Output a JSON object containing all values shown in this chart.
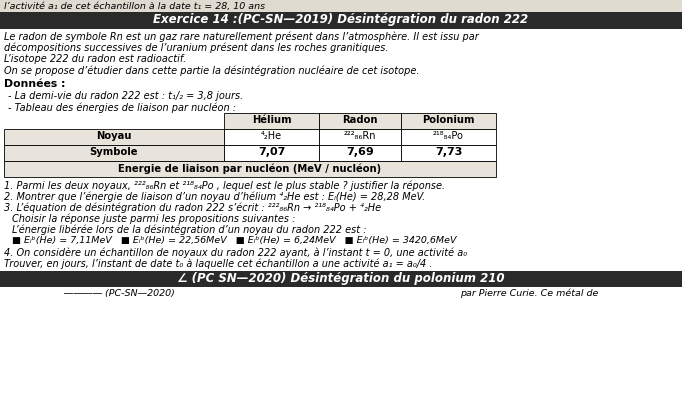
{
  "bg_color": "#f0ece4",
  "top_line": "l’activité a₁ de cet échantillon à la date t₁ = 28, 10 ans",
  "header_text": "Exercice 14 :(PC-SN—2019) Désintégration du radon 222",
  "para1": "Le radon de symbole Rn est un gaz rare naturellement présent dans l’atmosphère. Il est issu par",
  "para2": "décompositions successives de l’uranium présent dans les roches granitiques.",
  "para3": "L’isotope 222 du radon est radioactif.",
  "para4": "On se propose d’étudier dans cette partie la désintégration nucléaire de cet isotope.",
  "donnees_label": "Données :",
  "demi_vie": "- La demi-vie du radon 222 est : t₁/₂ = 3,8 jours.",
  "tableau_label": "- Tableau des énergies de liaison par nucléon :",
  "col_headers": [
    "Hélium",
    "Radon",
    "Polonium"
  ],
  "row1_label": "Noyau",
  "row1_vals": [
    "⁴₂He",
    "²²²₈₆Rn",
    "²¹⁸₈₄Po"
  ],
  "row2_label": "Symbole",
  "row2_vals": [
    "7,07",
    "7,69",
    "7,73"
  ],
  "row3_label": "Energie de liaison par nucléon (MeV / nucléon)",
  "q1": "1. Parmi les deux noyaux, ²²²₈₆Rn et ²¹⁸₈₄Po , lequel est le plus stable ? justifier la réponse.",
  "q2": "2. Montrer que l’énergie de liaison d’un noyau d’hélium ⁴₂He est : Eₗ(He) = 28,28 MeV.",
  "q3a": "3. L’équation de désintégration du radon 222 s’écrit : ²²²₈₆Rn → ²¹⁸₈₄Po + ⁴₂He",
  "q3b": "Choisir la réponse juste parmi les propositions suivantes :",
  "q3c": "L’énergie libérée lors de la désintégration d’un noyau du radon 222 est :",
  "q3d": "■ Eₗᵇ(He) = 7,11MeV   ■ Eₗᵇ(He) = 22,56MeV   ■ Eₗᵇ(He) = 6,24MeV   ■ Eₗᵇ(He) = 3420,6MeV",
  "q4a": "4. On considère un échantillon de noyaux du radon 222 ayant, à l’instant t = 0, une activité a₀",
  "q4b": "Trouver, en jours, l’instant de date t₀ à laquelle cet échantillon a une activité a₁ = a₀/4 .",
  "footer_text": "∠ (PC SN—2020) Désintégration du polonium 210",
  "last_line1": "                          ――――――――― (PC-SN—2020) ",
  "last_line2": "par Pierre Curie. Ce métal de"
}
